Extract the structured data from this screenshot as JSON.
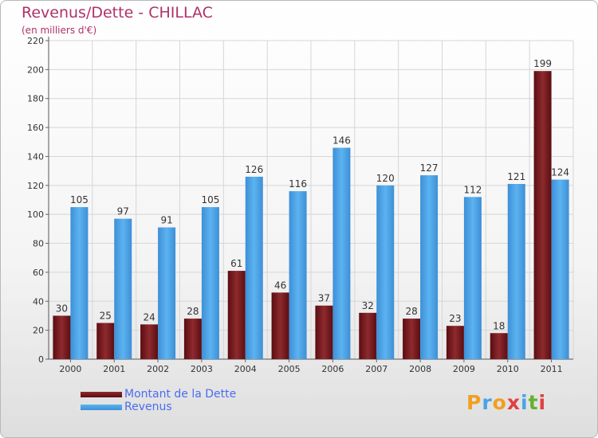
{
  "header": {
    "title": "Revenus/Dette - CHILLAC",
    "subtitle": "(en milliers d'€)"
  },
  "legend": {
    "debt_label": "Montant de la Dette",
    "revenue_label": "Revenus"
  },
  "logo": {
    "text": "Proxiti"
  },
  "colors": {
    "debt": "#7a1e22",
    "revenue": "#4aa3e6",
    "title": "#b0306a",
    "legend_text": "#4a6cf0"
  },
  "chart_data": {
    "type": "bar",
    "title": "Revenus/Dette - CHILLAC",
    "ylabel": "(en milliers d'€)",
    "xlabel": "",
    "categories": [
      "2000",
      "2001",
      "2002",
      "2003",
      "2004",
      "2005",
      "2006",
      "2007",
      "2008",
      "2009",
      "2010",
      "2011"
    ],
    "series": [
      {
        "name": "Montant de la Dette",
        "values": [
          30,
          25,
          24,
          28,
          61,
          46,
          37,
          32,
          28,
          23,
          18,
          199
        ]
      },
      {
        "name": "Revenus",
        "values": [
          105,
          97,
          91,
          105,
          126,
          116,
          146,
          120,
          127,
          112,
          121,
          124
        ]
      }
    ],
    "ylim": [
      0,
      220
    ],
    "yticks": [
      0,
      20,
      40,
      60,
      80,
      100,
      120,
      140,
      160,
      180,
      200,
      220
    ],
    "grid": true,
    "legend_position": "bottom-left"
  }
}
